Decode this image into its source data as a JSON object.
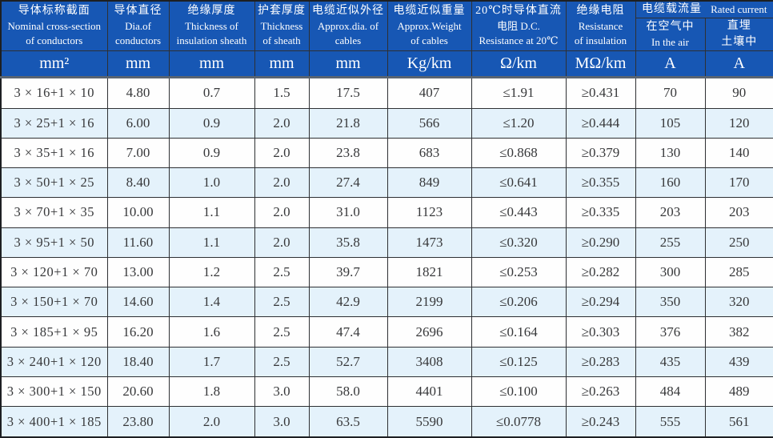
{
  "colors": {
    "header_bg": "#1757B4",
    "header_text": "#FFFFFF",
    "row_alt": "#E4F2FB",
    "row_plain": "#FEFEFE",
    "border": "#2E3033",
    "unit_sep": "#5A6572",
    "data_text": "#37383A"
  },
  "table": {
    "columns": [
      {
        "zh": "导体标称截面",
        "en": "Nominal cross-section\nof conductors",
        "unit": "mm²"
      },
      {
        "zh": "导体直径",
        "en": "Dia.of\nconductors",
        "unit": "mm"
      },
      {
        "zh": "绝缘厚度",
        "en": "Thickness of\ninsulation sheath",
        "unit": "mm"
      },
      {
        "zh": "护套厚度",
        "en": "Thickness\nof sheath",
        "unit": "mm"
      },
      {
        "zh": "电缆近似外径",
        "en": "Approx.dia. of\ncables",
        "unit": "mm"
      },
      {
        "zh": "电缆近似重量",
        "en": "Approx.Weight\nof cables",
        "unit": "Kg/km"
      },
      {
        "zh": "20℃时导体直流",
        "en": "电阻 D.C.\nResistance at 20℃",
        "unit": "Ω/km"
      },
      {
        "zh": "绝缘电阻",
        "en": "Resistance\nof insulation",
        "unit": "MΩ/km"
      }
    ],
    "current_group": {
      "zh": "电缆载流量",
      "en": "Rated current",
      "sub": [
        {
          "line1": "在空气中",
          "line2": "In the air",
          "unit": "A"
        },
        {
          "line1": "直埋",
          "line2": "土壤中",
          "unit": "A"
        }
      ]
    },
    "rows": [
      [
        "3 × 16+1 × 10",
        "4.80",
        "0.7",
        "1.5",
        "17.5",
        "407",
        "≤1.91",
        "≥0.431",
        "70",
        "90"
      ],
      [
        "3 × 25+1 × 16",
        "6.00",
        "0.9",
        "2.0",
        "21.8",
        "566",
        "≤1.20",
        "≥0.444",
        "105",
        "120"
      ],
      [
        "3 × 35+1 × 16",
        "7.00",
        "0.9",
        "2.0",
        "23.8",
        "683",
        "≤0.868",
        "≥0.379",
        "130",
        "140"
      ],
      [
        "3 × 50+1 × 25",
        "8.40",
        "1.0",
        "2.0",
        "27.4",
        "849",
        "≤0.641",
        "≥0.355",
        "160",
        "170"
      ],
      [
        "3 × 70+1 × 35",
        "10.00",
        "1.1",
        "2.0",
        "31.0",
        "1123",
        "≤0.443",
        "≥0.335",
        "203",
        "203"
      ],
      [
        "3 × 95+1 × 50",
        "11.60",
        "1.1",
        "2.0",
        "35.8",
        "1473",
        "≤0.320",
        "≥0.290",
        "255",
        "250"
      ],
      [
        "3 × 120+1 × 70",
        "13.00",
        "1.2",
        "2.5",
        "39.7",
        "1821",
        "≤0.253",
        "≥0.282",
        "300",
        "285"
      ],
      [
        "3 × 150+1 × 70",
        "14.60",
        "1.4",
        "2.5",
        "42.9",
        "2199",
        "≤0.206",
        "≥0.294",
        "350",
        "320"
      ],
      [
        "3 × 185+1 × 95",
        "16.20",
        "1.6",
        "2.5",
        "47.4",
        "2696",
        "≤0.164",
        "≥0.303",
        "376",
        "382"
      ],
      [
        "3 × 240+1 × 120",
        "18.40",
        "1.7",
        "2.5",
        "52.7",
        "3408",
        "≤0.125",
        "≥0.283",
        "435",
        "439"
      ],
      [
        "3 × 300+1 × 150",
        "20.60",
        "1.8",
        "3.0",
        "58.0",
        "4401",
        "≤0.100",
        "≥0.263",
        "484",
        "489"
      ],
      [
        "3 × 400+1 × 185",
        "23.80",
        "2.0",
        "3.0",
        "63.5",
        "5590",
        "≤0.0778",
        "≥0.243",
        "555",
        "561"
      ]
    ]
  }
}
